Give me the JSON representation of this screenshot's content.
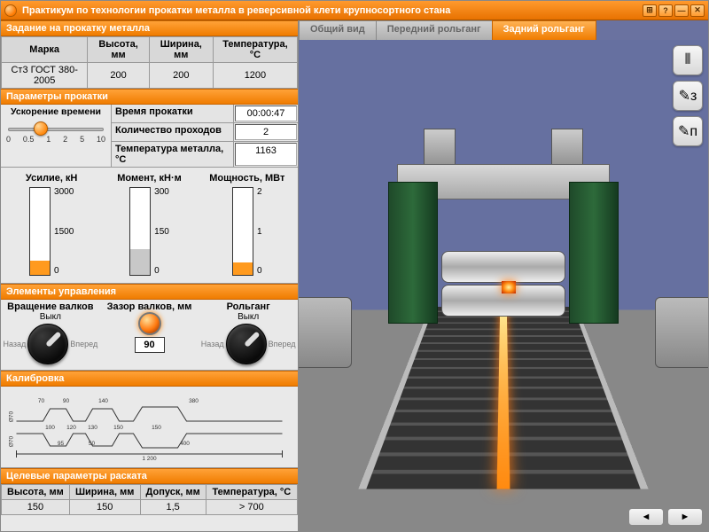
{
  "window": {
    "title": "Практикум по технологии прокатки металла в реверсивной клети крупносортного стана",
    "buttons": [
      "⊞",
      "?",
      "—",
      "✕"
    ]
  },
  "colors": {
    "accent": "#f07c00",
    "accent_light": "#ffa238",
    "bar_fill": "#ff9a1e"
  },
  "task": {
    "title": "Задание на прокатку металла",
    "headers": [
      "Марка",
      "Высота, мм",
      "Ширина, мм",
      "Температура, °C"
    ],
    "row": [
      "Ст3 ГОСТ 380-2005",
      "200",
      "200",
      "1200"
    ]
  },
  "rolling": {
    "title": "Параметры прокатки",
    "time_accel_label": "Ускорение времени",
    "time_accel_ticks": [
      "0",
      "0.5",
      "1",
      "2",
      "5",
      "10"
    ],
    "time_accel_pos_pct": 35,
    "kv": [
      {
        "k": "Время прокатки",
        "v": "00:00:47"
      },
      {
        "k": "Количество проходов",
        "v": "2"
      },
      {
        "k": "Температура металла, °C",
        "v": "1163"
      }
    ]
  },
  "gauges": [
    {
      "title": "Усилие, кН",
      "fill_color": "#ff9a1e",
      "ticks": [
        "3000",
        "1500",
        "0"
      ],
      "fill_pct": 16
    },
    {
      "title": "Момент, кН·м",
      "fill_color": "#c8c8c8",
      "ticks": [
        "300",
        "150",
        "0"
      ],
      "fill_pct": 30
    },
    {
      "title": "Мощность, МВт",
      "fill_color": "#ff9a1e",
      "ticks": [
        "2",
        "1",
        "0"
      ],
      "fill_pct": 14
    }
  ],
  "controls": {
    "title": "Элементы управления",
    "roll_rot": {
      "title": "Вращение валков",
      "state": "Выкл",
      "back": "Назад",
      "fwd": "Вперед"
    },
    "gap": {
      "title": "Зазор валков, мм",
      "value": "90"
    },
    "table": {
      "title": "Рольганг",
      "state": "Выкл",
      "back": "Назад",
      "fwd": "Вперед"
    }
  },
  "calibration": {
    "title": "Калибровка",
    "dims": {
      "d70": "70",
      "d90": "90",
      "d140": "140",
      "d380": "380",
      "d100": "100",
      "d120": "120",
      "d130": "130",
      "d150_a": "150",
      "d150_b": "150",
      "d95": "95",
      "d50": "50",
      "d400": "400",
      "total": "1 200",
      "h70a": "Ø70",
      "h70b": "Ø70"
    }
  },
  "target": {
    "title": "Целевые параметры раската",
    "headers": [
      "Высота, мм",
      "Ширина, мм",
      "Допуск, мм",
      "Температура, °C"
    ],
    "row": [
      "150",
      "150",
      "1,5",
      "> 700"
    ]
  },
  "tabs": [
    {
      "label": "Общий вид",
      "active": false
    },
    {
      "label": "Передний рольганг",
      "active": false
    },
    {
      "label": "Задний рольганг",
      "active": true
    }
  ],
  "side_tools": [
    "⦀",
    "✎з",
    "✎п"
  ],
  "nav": {
    "left": "◄",
    "right": "►"
  }
}
